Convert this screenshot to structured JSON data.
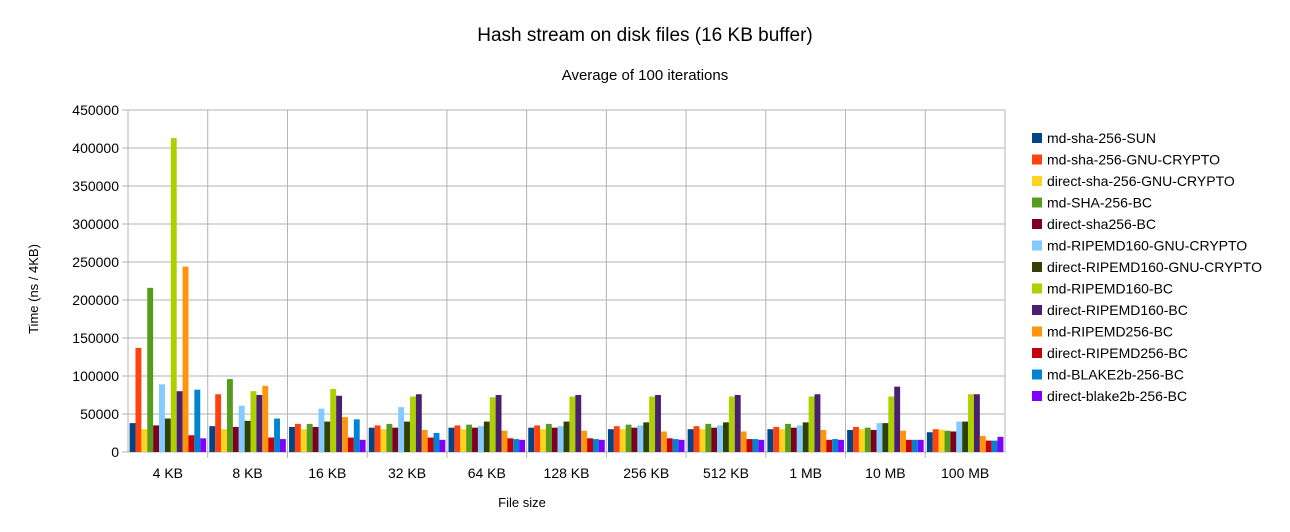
{
  "chart_data": {
    "type": "bar",
    "title": "Hash stream on disk files (16 KB buffer)",
    "subtitle": "Average of 100 iterations",
    "xlabel": "File size",
    "ylabel": "Time (ns / 4KB)",
    "ylim": [
      0,
      450000
    ],
    "yticks": [
      0,
      50000,
      100000,
      150000,
      200000,
      250000,
      300000,
      350000,
      400000,
      450000
    ],
    "grid": true,
    "legend_position": "right",
    "categories": [
      "4 KB",
      "8 KB",
      "16 KB",
      "32 KB",
      "64 KB",
      "128 KB",
      "256 KB",
      "512 KB",
      "1 MB",
      "10 MB",
      "100 MB"
    ],
    "series": [
      {
        "name": "md-sha-256-SUN",
        "color": "#004586",
        "values": [
          38000,
          34000,
          33000,
          32000,
          32000,
          32000,
          30000,
          30000,
          30000,
          29000,
          26000
        ]
      },
      {
        "name": "md-sha-256-GNU-CRYPTO",
        "color": "#ff420e",
        "values": [
          137000,
          76000,
          37000,
          35000,
          35000,
          35000,
          34000,
          34000,
          33000,
          33000,
          30000
        ]
      },
      {
        "name": "direct-sha-256-GNU-CRYPTO",
        "color": "#ffd320",
        "values": [
          30000,
          30000,
          30000,
          30000,
          30000,
          30000,
          30000,
          30000,
          30000,
          30000,
          29000
        ]
      },
      {
        "name": "md-SHA-256-BC",
        "color": "#579d1c",
        "values": [
          216000,
          96000,
          37000,
          37000,
          36000,
          37000,
          36000,
          37000,
          37000,
          32000,
          28000
        ]
      },
      {
        "name": "direct-sha256-BC",
        "color": "#7e0021",
        "values": [
          35000,
          33000,
          33000,
          32000,
          32000,
          32000,
          32000,
          32000,
          32000,
          29000,
          27000
        ]
      },
      {
        "name": "md-RIPEMD160-GNU-CRYPTO",
        "color": "#83caff",
        "values": [
          89000,
          61000,
          57000,
          59000,
          34000,
          34000,
          35000,
          35000,
          35000,
          38000,
          40000
        ]
      },
      {
        "name": "direct-RIPEMD160-GNU-CRYPTO",
        "color": "#314004",
        "values": [
          44000,
          41000,
          40000,
          40000,
          40000,
          40000,
          39000,
          39000,
          39000,
          38000,
          40000
        ]
      },
      {
        "name": "md-RIPEMD160-BC",
        "color": "#aecf00",
        "values": [
          413000,
          80000,
          83000,
          73000,
          72000,
          73000,
          73000,
          73000,
          73000,
          73000,
          76000
        ]
      },
      {
        "name": "direct-RIPEMD160-BC",
        "color": "#4b1f6f",
        "values": [
          80000,
          75000,
          74000,
          76000,
          75000,
          75000,
          75000,
          75000,
          76000,
          86000,
          76000
        ]
      },
      {
        "name": "md-RIPEMD256-BC",
        "color": "#ff950e",
        "values": [
          244000,
          87000,
          46000,
          29000,
          28000,
          28000,
          27000,
          27000,
          29000,
          28000,
          21000
        ]
      },
      {
        "name": "direct-RIPEMD256-BC",
        "color": "#c5000b",
        "values": [
          22000,
          19000,
          19000,
          19000,
          18000,
          18000,
          18000,
          17000,
          16000,
          16000,
          15000
        ]
      },
      {
        "name": "md-BLAKE2b-256-BC",
        "color": "#0084d1",
        "values": [
          82000,
          44000,
          43000,
          25000,
          17000,
          17000,
          17000,
          17000,
          17000,
          16000,
          15000
        ]
      },
      {
        "name": "direct-blake2b-256-BC",
        "color": "#8000ff",
        "values": [
          18000,
          17000,
          16000,
          16000,
          16000,
          16000,
          16000,
          16000,
          16000,
          16000,
          20000
        ]
      }
    ]
  }
}
